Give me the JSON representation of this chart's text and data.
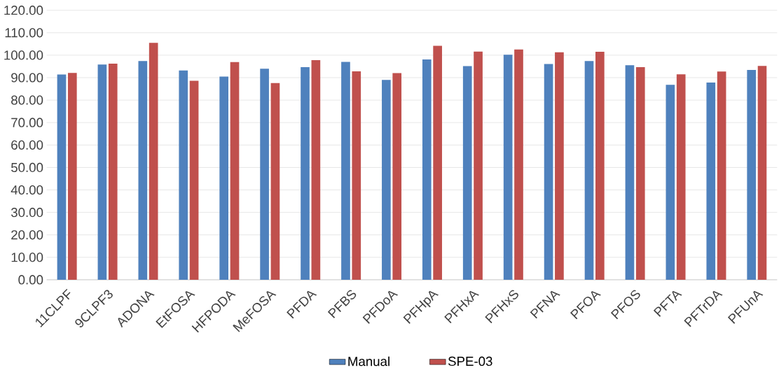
{
  "chart_data": {
    "type": "bar",
    "categories": [
      "11CLPF",
      "9CLPF3",
      "ADONA",
      "EtFOSA",
      "HFPODA",
      "MeFOSA",
      "PFDA",
      "PFBS",
      "PFDoA",
      "PFHpA",
      "PFHxA",
      "PFHxS",
      "PFNA",
      "PFOA",
      "PFOS",
      "PFTA",
      "PFTrDA",
      "PFUnA"
    ],
    "series": [
      {
        "name": "Manual",
        "color": "#4f81bd",
        "values": [
          91.4,
          95.8,
          97.4,
          93.2,
          90.5,
          94.0,
          94.7,
          97.0,
          89.0,
          98.1,
          95.1,
          100.2,
          96.1,
          97.4,
          95.5,
          86.8,
          87.8,
          93.4
        ]
      },
      {
        "name": "SPE-03",
        "color": "#c0504d",
        "values": [
          92.1,
          96.2,
          105.5,
          88.6,
          96.9,
          87.6,
          97.8,
          92.8,
          92.0,
          104.2,
          101.6,
          102.5,
          101.3,
          101.5,
          94.7,
          91.5,
          92.7,
          95.2
        ]
      }
    ],
    "ylim": [
      0,
      120
    ],
    "yticks": [
      {
        "value": 0,
        "label": "0.00"
      },
      {
        "value": 10,
        "label": "10.00"
      },
      {
        "value": 20,
        "label": "20.00"
      },
      {
        "value": 30,
        "label": "30.00"
      },
      {
        "value": 40,
        "label": "40.00"
      },
      {
        "value": 50,
        "label": "50.00"
      },
      {
        "value": 60,
        "label": "60.00"
      },
      {
        "value": 70,
        "label": "70.00"
      },
      {
        "value": 80,
        "label": "80.00"
      },
      {
        "value": 90,
        "label": "90.00"
      },
      {
        "value": 100,
        "label": "100.00"
      },
      {
        "value": 110,
        "label": "110.00"
      },
      {
        "value": 120,
        "label": "120.00"
      }
    ],
    "grid": "y",
    "legend": "bottom"
  }
}
